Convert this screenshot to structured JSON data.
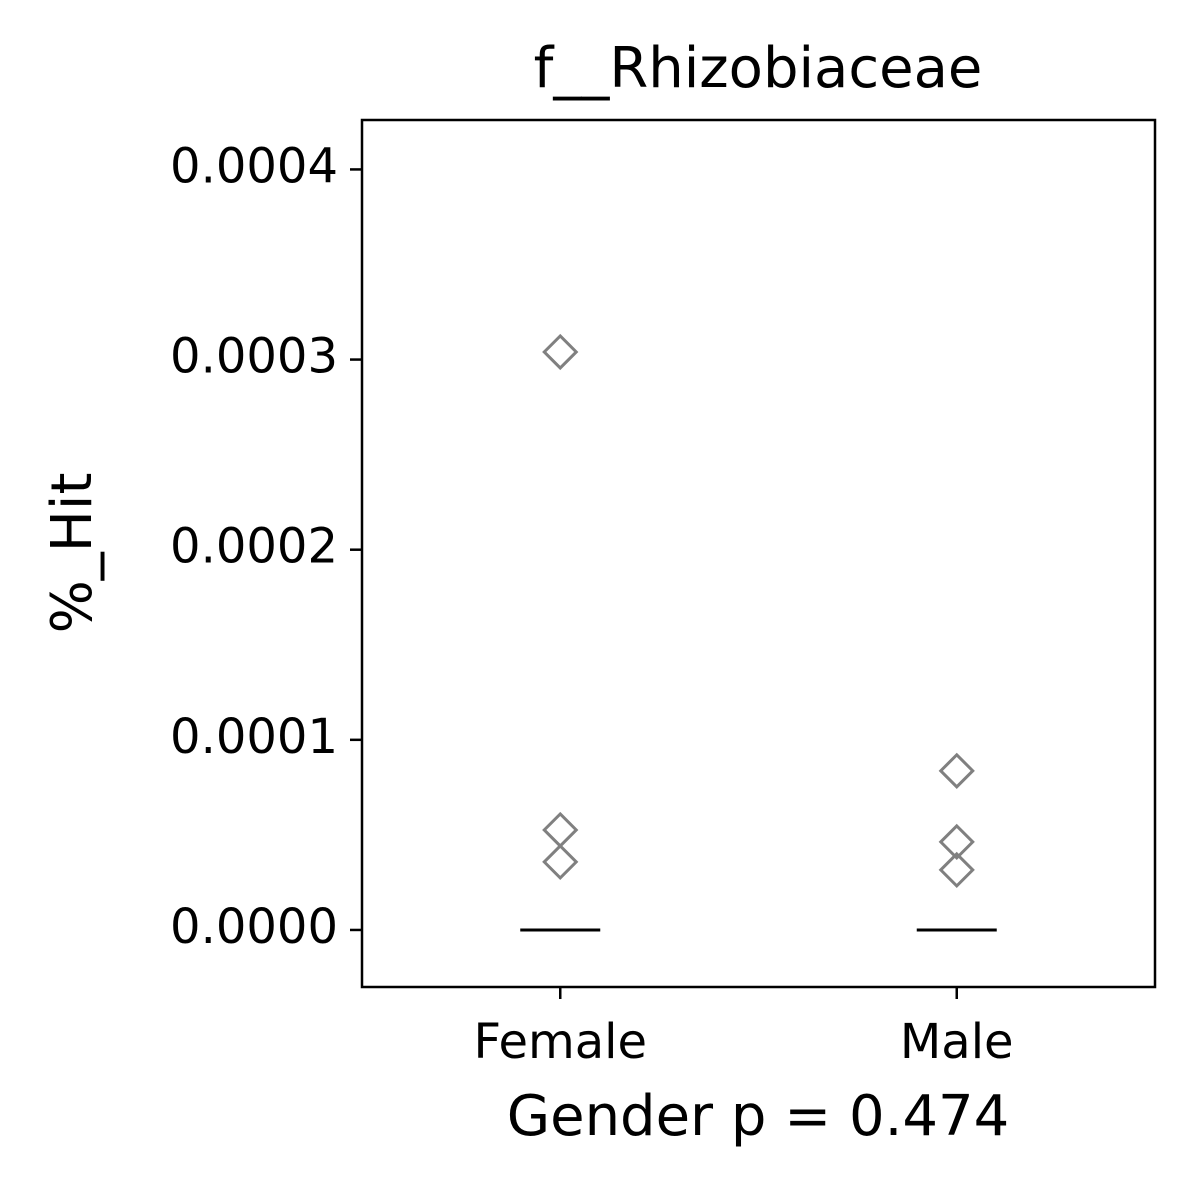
{
  "chart_data": {
    "type": "strip",
    "title": "f__Rhizobiaceae",
    "x_label": "Gender p = 0.474",
    "y_label": "%_Hit",
    "categories": [
      "Female",
      "Male"
    ],
    "values": [
      [
        0.000304,
        5.26e-05,
        3.58e-05
      ],
      [
        8.37e-05,
        4.63e-05,
        3.16e-05
      ]
    ],
    "medians": [
      0,
      0
    ],
    "color": "#808080",
    "median_color": "#000000",
    "ylim": [
      -3e-05,
      0.000426
    ],
    "yticks": [
      {
        "value": 0,
        "label": "0.0000"
      },
      {
        "value": 0.0001,
        "label": "0.0001"
      },
      {
        "value": 0.0002,
        "label": "0.0002"
      },
      {
        "value": 0.0003,
        "label": "0.0003"
      },
      {
        "value": 0.0004,
        "label": "0.0004"
      }
    ],
    "grid": false
  }
}
